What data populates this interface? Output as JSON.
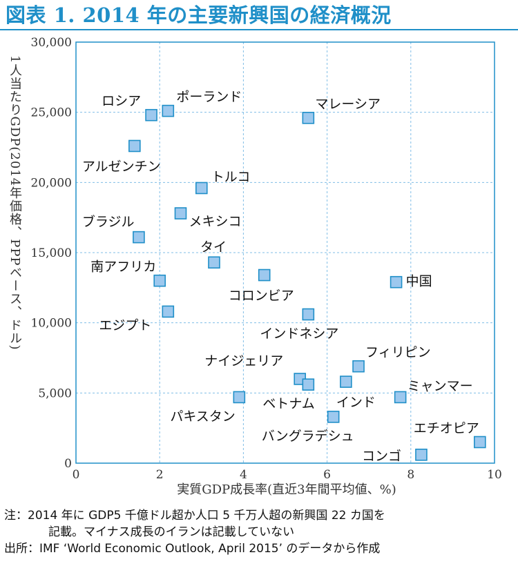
{
  "title": "図表 1. 2014 年の主要新興国の経済概況",
  "chart_data": {
    "type": "scatter",
    "xlabel": "実質GDP成長率(直近3年間平均値、%)",
    "ylabel": "1人当たりGDP(2014年価格、PPPベース、ドル)",
    "xlim": [
      0,
      10
    ],
    "ylim": [
      0,
      30000
    ],
    "xticks": [
      0,
      2,
      4,
      6,
      8,
      10
    ],
    "yticks": [
      0,
      5000,
      10000,
      15000,
      20000,
      25000,
      30000
    ],
    "ytick_labels": [
      "0",
      "5,000",
      "10,000",
      "15,000",
      "20,000",
      "25,000",
      "30,000"
    ],
    "grid": "dashed",
    "marker_color": "#9dc8ee",
    "marker_edge": "#1f8fc8",
    "points": [
      {
        "label": "ロシア",
        "x": 1.8,
        "y": 24800
      },
      {
        "label": "ポーランド",
        "x": 2.2,
        "y": 25100
      },
      {
        "label": "マレーシア",
        "x": 5.55,
        "y": 24600
      },
      {
        "label": "アルゼンチン",
        "x": 1.4,
        "y": 22600
      },
      {
        "label": "トルコ",
        "x": 3.0,
        "y": 19600
      },
      {
        "label": "メキシコ",
        "x": 2.5,
        "y": 17800
      },
      {
        "label": "ブラジル",
        "x": 1.5,
        "y": 16100
      },
      {
        "label": "タイ",
        "x": 3.3,
        "y": 14300
      },
      {
        "label": "南アフリカ",
        "x": 2.0,
        "y": 13000
      },
      {
        "label": "コロンビア",
        "x": 4.5,
        "y": 13400
      },
      {
        "label": "中国",
        "x": 7.65,
        "y": 12900
      },
      {
        "label": "エジプト",
        "x": 2.2,
        "y": 10800
      },
      {
        "label": "インドネシア",
        "x": 5.55,
        "y": 10600
      },
      {
        "label": "フィリピン",
        "x": 6.75,
        "y": 6900
      },
      {
        "label": "ナイジェリア",
        "x": 5.35,
        "y": 6000
      },
      {
        "label": "ベトナム",
        "x": 5.55,
        "y": 5600
      },
      {
        "label": "インド",
        "x": 6.45,
        "y": 5800
      },
      {
        "label": "ミャンマー",
        "x": 7.75,
        "y": 4700
      },
      {
        "label": "パキスタン",
        "x": 3.9,
        "y": 4700
      },
      {
        "label": "バングラデシュ",
        "x": 6.15,
        "y": 3300
      },
      {
        "label": "エチオピア",
        "x": 9.65,
        "y": 1500
      },
      {
        "label": "コンゴ",
        "x": 8.25,
        "y": 600
      }
    ]
  },
  "notes": {
    "note_head": "注：",
    "note_line1": "2014 年に GDP5 千億ドル超か人口 5 千万人超の新興国 22 カ国を",
    "note_line2": "記載。マイナス成長のイランは記載していない",
    "source_head": "出所：",
    "source_text": "IMF ‘World Economic Outlook, April 2015’ のデータから作成"
  }
}
